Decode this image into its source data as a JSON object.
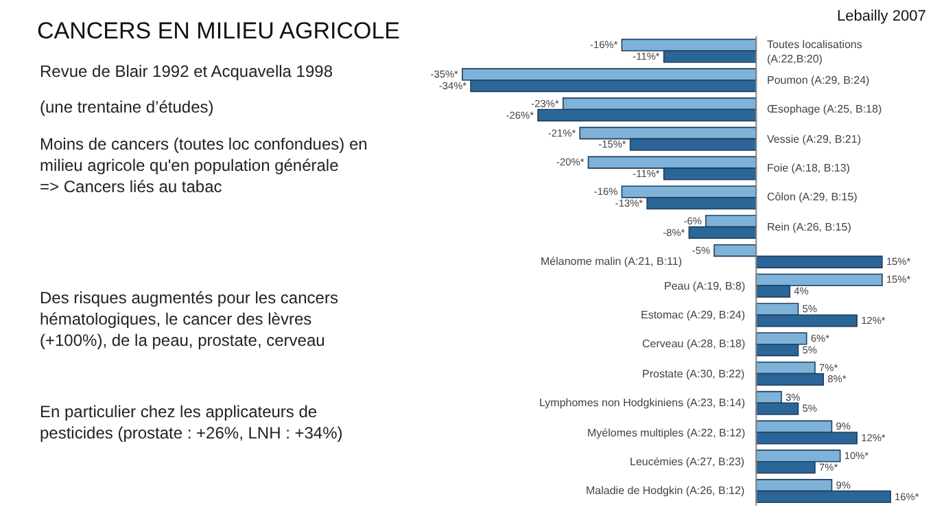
{
  "chart_data": {
    "type": "bar",
    "orientation": "horizontal",
    "title": "CANCERS EN MILIEU AGRICOLE",
    "annotations": [
      "Lebailly 2007",
      "Revue de Blair 1992 et Acquavella 1998",
      "(une trentaine d’études)",
      "Moins de cancers (toutes loc confondues) en\nmilieu agricole qu'en population générale\n=> Cancers liés au tabac",
      "Des risques augmentés pour les cancers\nhématologiques, le cancer des lèvres\n(+100%), de la peau, prostate, cerveau",
      "En particulier chez les applicateurs de\npesticides (prostate : +26%, LNH : +34%)"
    ],
    "categories": [
      "Toutes localisations\n(A:22,B:20)",
      "Poumon (A:29, B:24)",
      "Œsophage (A:25, B:18)",
      "Vessie (A:29, B:21)",
      "Foie (A:18, B:13)",
      "Côlon (A:29, B:15)",
      "Rein (A:26, B:15)",
      "Mélanome malin (A:21, B:11)",
      "Peau (A:19, B:8)",
      "Estomac (A:29, B:24)",
      "Cerveau (A:28, B:18)",
      "Prostate (A:30, B:22)",
      "Lymphomes non Hodgkiniens (A:23, B:14)",
      "Myélomes multiples (A:22, B:12)",
      "Leucémies (A:27, B:23)",
      "Maladie de Hodgkin (A:26, B:12)"
    ],
    "series": [
      {
        "color": "#7fb2d8",
        "values": [
          -16,
          -35,
          -23,
          -21,
          -20,
          -16,
          -6,
          -5,
          15,
          5,
          6,
          7,
          3,
          9,
          10,
          9
        ],
        "value_labels": [
          "-16%*",
          "-35%*",
          "-23%*",
          "-21%*",
          "-20%*",
          "-16%",
          "-6%",
          "-5%",
          "15%*",
          "5%",
          "6%*",
          "7%*",
          "3%",
          "9%",
          "10%*",
          "9%"
        ]
      },
      {
        "color": "#2b6699",
        "values": [
          -11,
          -34,
          -26,
          -15,
          -11,
          -13,
          -8,
          15,
          4,
          12,
          5,
          8,
          5,
          12,
          7,
          16
        ],
        "value_labels": [
          "-11%*",
          "-34%*",
          "-26%*",
          "-15%*",
          "-11%*",
          "-13%*",
          "-8%*",
          "15%*",
          "4%",
          "12%*",
          "5%",
          "8%*",
          "5%",
          "12%*",
          "7%*",
          "16%*"
        ]
      }
    ],
    "tick_labels": "y"
  }
}
